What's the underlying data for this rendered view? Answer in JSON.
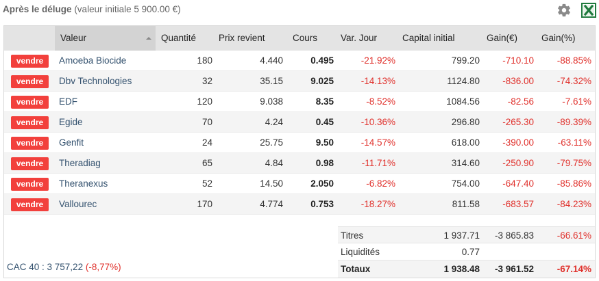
{
  "header": {
    "title_strong": "Après le déluge",
    "title_sub": "(valeur initiale 5 900.00 €)"
  },
  "table": {
    "columns": [
      "Valeur",
      "Quantité",
      "Prix revient",
      "Cours",
      "Var. Jour",
      "Capital initial",
      "Gain(€)",
      "Gain(%)"
    ],
    "sell_label": "vendre",
    "rows": [
      {
        "name": "Amoeba Biocide",
        "qty": "180",
        "pru": "4.440",
        "cours": "0.495",
        "var": "-21.92%",
        "capital": "799.20",
        "gain_eur": "-710.10",
        "gain_pct": "-88.85%"
      },
      {
        "name": "Dbv Technologies",
        "qty": "32",
        "pru": "35.15",
        "cours": "9.025",
        "var": "-14.13%",
        "capital": "1124.80",
        "gain_eur": "-836.00",
        "gain_pct": "-74.32%"
      },
      {
        "name": "EDF",
        "qty": "120",
        "pru": "9.038",
        "cours": "8.35",
        "var": "-8.52%",
        "capital": "1084.56",
        "gain_eur": "-82.56",
        "gain_pct": "-7.61%"
      },
      {
        "name": "Egide",
        "qty": "70",
        "pru": "4.24",
        "cours": "0.45",
        "var": "-10.36%",
        "capital": "296.80",
        "gain_eur": "-265.30",
        "gain_pct": "-89.39%"
      },
      {
        "name": "Genfit",
        "qty": "24",
        "pru": "25.75",
        "cours": "9.50",
        "var": "-14.57%",
        "capital": "618.00",
        "gain_eur": "-390.00",
        "gain_pct": "-63.11%"
      },
      {
        "name": "Theradiag",
        "qty": "65",
        "pru": "4.84",
        "cours": "0.98",
        "var": "-11.71%",
        "capital": "314.60",
        "gain_eur": "-250.90",
        "gain_pct": "-79.75%"
      },
      {
        "name": "Theranexus",
        "qty": "52",
        "pru": "14.50",
        "cours": "2.050",
        "var": "-6.82%",
        "capital": "754.00",
        "gain_eur": "-647.40",
        "gain_pct": "-85.86%"
      },
      {
        "name": "Vallourec",
        "qty": "170",
        "pru": "4.774",
        "cours": "0.753",
        "var": "-18.27%",
        "capital": "811.58",
        "gain_eur": "-683.57",
        "gain_pct": "-84.23%"
      }
    ]
  },
  "summary": {
    "titres": {
      "label": "Titres",
      "value": "1 937.71",
      "gain_eur": "-3 865.83",
      "gain_pct": "-66.61%"
    },
    "liquidites": {
      "label": "Liquidités",
      "value": "0.77"
    },
    "totaux": {
      "label": "Totaux",
      "value": "1 938.48",
      "gain_eur": "-3 961.52",
      "gain_pct": "-67.14%"
    }
  },
  "footer": {
    "cac_label": "CAC 40 : 3 757,22",
    "cac_var": "(-8,77%)"
  },
  "icons": {
    "settings": "gear-icon",
    "export": "excel-icon"
  },
  "colors": {
    "negative": "#e0302b",
    "sell_button": "#f2403c",
    "link": "#33516e",
    "header_bg": "#e4e4e4",
    "excel_green": "#1f7a3d"
  }
}
